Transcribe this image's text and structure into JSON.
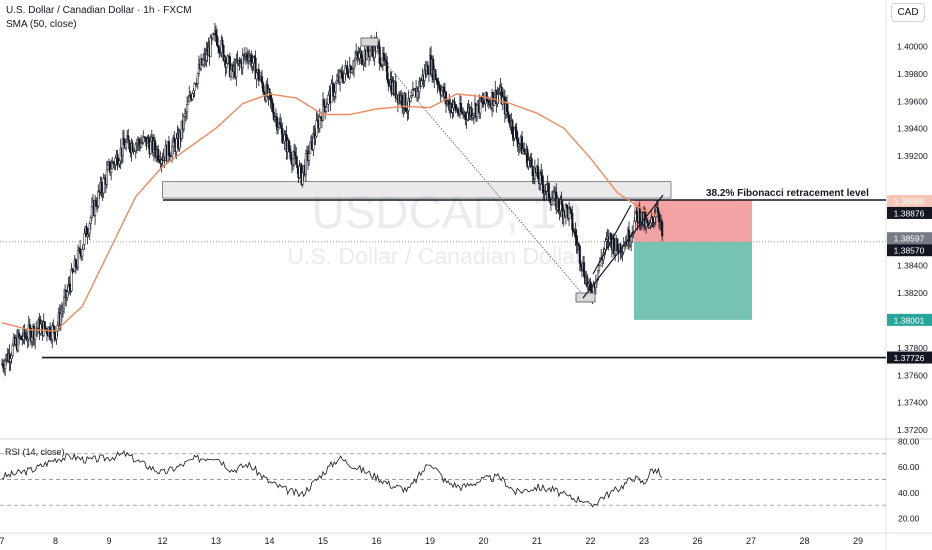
{
  "header": {
    "symbol_title": "U.S. Dollar / Canadian Dollar · 1h · FXCM",
    "indicator_label": "SMA (50, close)",
    "currency_button": "CAD"
  },
  "watermark": {
    "ticker": "USDCAD, 1h",
    "name": "U.S. Dollar / Canadian Dollar"
  },
  "annotations": {
    "fib_label": "38.2% Fibonacci retracement level"
  },
  "colors": {
    "sma": "#f08a5d",
    "risk_box": "#f3999a",
    "reward_box": "#6fc0b0",
    "zone": "#d9d9d9",
    "price_label_red": "#f7c5b5",
    "candle": "#131722"
  },
  "chart_data": [
    {
      "type": "candlestick",
      "title": "U.S. Dollar / Canadian Dollar · 1h · FXCM",
      "x_ticks": [
        "7",
        "8",
        "9",
        "12",
        "13",
        "14",
        "15",
        "16",
        "19",
        "20",
        "21",
        "22",
        "23",
        "26",
        "27",
        "28",
        "29"
      ],
      "y_ticks": [
        "1.40000",
        "1.39800",
        "1.39600",
        "1.39400",
        "1.39200",
        "1.38869",
        "1.38800",
        "1.38600",
        "1.38400",
        "1.38200",
        "1.38000",
        "1.37800",
        "1.37600",
        "1.37400",
        "1.37200"
      ],
      "ylim": [
        1.3712,
        1.403
      ],
      "price_labels": [
        {
          "value": "1.38869",
          "style": "sma"
        },
        {
          "value": "1.38876",
          "style": "dark"
        },
        {
          "value": "1.38597",
          "style": "gray"
        },
        {
          "value": "1.38570",
          "style": "dark"
        },
        {
          "value": "1.38001",
          "style": "green"
        },
        {
          "value": "1.37726",
          "style": "dark"
        }
      ],
      "key_levels": [
        1.38876,
        1.37726
      ],
      "current_price": 1.3857,
      "zone": {
        "from": "12",
        "to": "23",
        "low": 1.3889,
        "high": 1.3901
      },
      "position": {
        "entry": 1.3857,
        "stop": 1.38876,
        "target": 1.38001
      },
      "series": [
        {
          "name": "SMA (50, close)",
          "line": true,
          "x": [
            0,
            0.5,
            1,
            1.5,
            2,
            2.5,
            3,
            3.5,
            4,
            4.5,
            5,
            5.5,
            6,
            6.5,
            7,
            7.5,
            8,
            8.5,
            9,
            9.5,
            10,
            10.5,
            11,
            11.5,
            12,
            12.3
          ],
          "y": [
            1.3798,
            1.3793,
            1.3792,
            1.381,
            1.385,
            1.389,
            1.3912,
            1.3926,
            1.394,
            1.3958,
            1.3965,
            1.3962,
            1.395,
            1.395,
            1.3954,
            1.3956,
            1.3955,
            1.3965,
            1.3963,
            1.3958,
            1.3951,
            1.394,
            1.3918,
            1.3893,
            1.388,
            1.3876
          ]
        },
        {
          "name": "Price (close)",
          "x": [
            0,
            0.3,
            0.7,
            1.0,
            1.3,
            1.7,
            2.0,
            2.3,
            2.7,
            3.0,
            3.3,
            3.6,
            4.0,
            4.3,
            4.6,
            5.0,
            5.3,
            5.6,
            6.0,
            6.3,
            6.6,
            7.0,
            7.3,
            7.6,
            8.0,
            8.3,
            8.6,
            9.0,
            9.3,
            9.6,
            10.0,
            10.3,
            10.6,
            11.0,
            11.2,
            11.35,
            11.5,
            11.7,
            11.9,
            12.1,
            12.25,
            12.35
          ],
          "y": [
            1.3768,
            1.3785,
            1.3795,
            1.3792,
            1.383,
            1.388,
            1.391,
            1.3928,
            1.393,
            1.392,
            1.393,
            1.3975,
            1.4008,
            1.398,
            1.3995,
            1.396,
            1.393,
            1.3905,
            1.3955,
            1.3975,
            1.399,
            1.4,
            1.397,
            1.3955,
            1.3988,
            1.396,
            1.395,
            1.3958,
            1.3966,
            1.3935,
            1.3905,
            1.3888,
            1.3878,
            1.3818,
            1.3845,
            1.386,
            1.3852,
            1.386,
            1.3878,
            1.3865,
            1.3885,
            1.3858
          ]
        }
      ]
    },
    {
      "type": "line",
      "title": "RSI (14, close)",
      "y_ticks": [
        "80.00",
        "60.00",
        "40.00",
        "20.00"
      ],
      "ylim": [
        20,
        80
      ],
      "bands": [
        70,
        50,
        30
      ],
      "series": [
        {
          "name": "RSI (14, close)",
          "x": [
            0,
            0.3,
            0.6,
            1.0,
            1.3,
            1.6,
            2.0,
            2.3,
            2.6,
            3.0,
            3.3,
            3.6,
            4.0,
            4.3,
            4.6,
            5.0,
            5.3,
            5.6,
            6.0,
            6.3,
            6.6,
            7.0,
            7.3,
            7.6,
            8.0,
            8.3,
            8.6,
            9.0,
            9.3,
            9.6,
            10.0,
            10.3,
            10.6,
            10.9,
            11.0,
            11.2,
            11.4,
            11.6,
            11.8,
            12.0,
            12.15,
            12.3,
            12.35
          ],
          "y": [
            52,
            55,
            58,
            66,
            68,
            65,
            67,
            70,
            63,
            55,
            60,
            66,
            68,
            57,
            62,
            48,
            42,
            38,
            55,
            67,
            60,
            52,
            45,
            42,
            64,
            48,
            44,
            50,
            52,
            40,
            44,
            42,
            36,
            34,
            28,
            36,
            40,
            45,
            52,
            47,
            58,
            55,
            46
          ]
        }
      ]
    }
  ]
}
